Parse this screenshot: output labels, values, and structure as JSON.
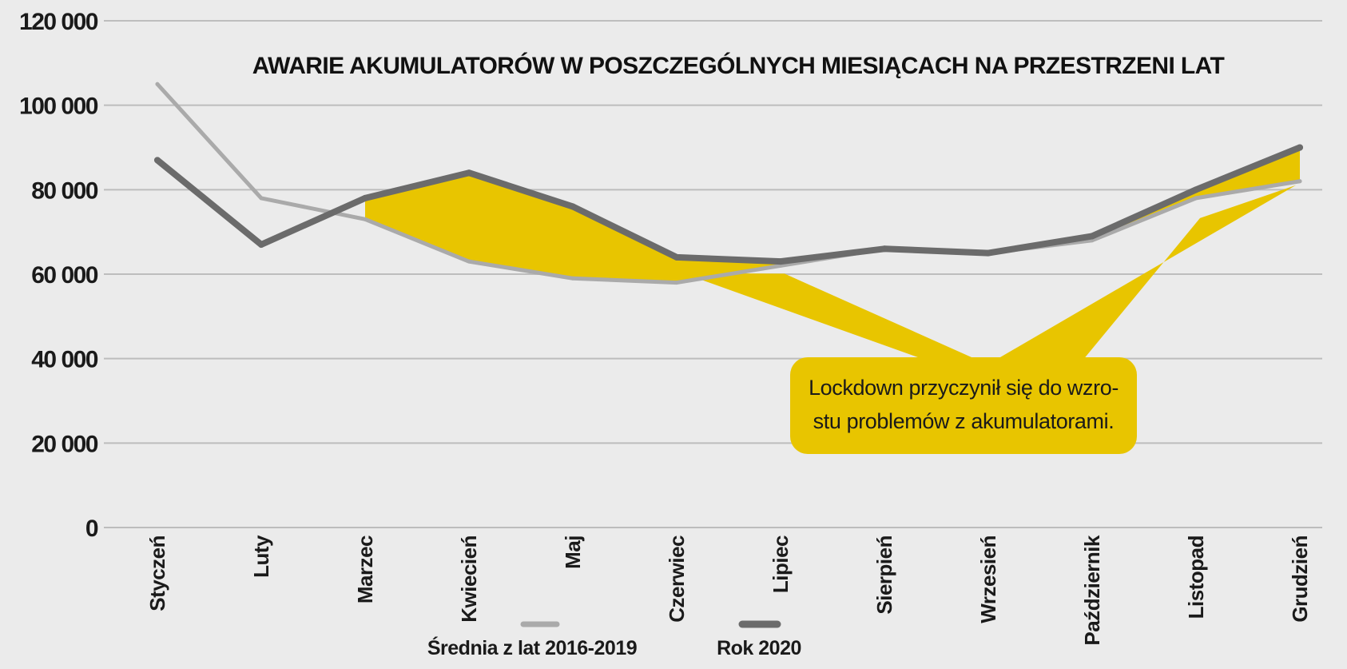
{
  "chart_data": {
    "type": "line",
    "title": "AWARIE AKUMULATORÓW W POSZCZEGÓLNYCH MIESIĄCACH NA PRZESTRZENI LAT",
    "xlabel": "",
    "ylabel": "",
    "ylim": [
      0,
      120000
    ],
    "yticks": [
      0,
      20000,
      40000,
      60000,
      80000,
      100000,
      120000
    ],
    "ytick_labels": [
      "0",
      "20 000",
      "40 000",
      "60 000",
      "80 000",
      "100 000",
      "120 000"
    ],
    "categories": [
      "Styczeń",
      "Luty",
      "Marzec",
      "Kwiecień",
      "Maj",
      "Czerwiec",
      "Lipiec",
      "Sierpień",
      "Wrzesień",
      "Październik",
      "Listopad",
      "Grudzień"
    ],
    "series": [
      {
        "name": "Średnia z lat 2016-2019",
        "color": "#aaaaaa",
        "values": [
          105000,
          78000,
          73000,
          63000,
          59000,
          58000,
          62000,
          66000,
          65000,
          68000,
          78000,
          82000
        ]
      },
      {
        "name": "Rok 2020",
        "color": "#6b6b6b",
        "values": [
          87000,
          67000,
          78000,
          84000,
          76000,
          64000,
          63000,
          66000,
          65000,
          69000,
          80000,
          90000
        ]
      }
    ],
    "grid": true,
    "legend": "bottom",
    "fill_between_color": "#e8c500",
    "annotation": {
      "lines": [
        "Lockdown przyczynił się do wzro-",
        "stu problemów z akumulatorami."
      ],
      "color": "#e8c500"
    }
  }
}
